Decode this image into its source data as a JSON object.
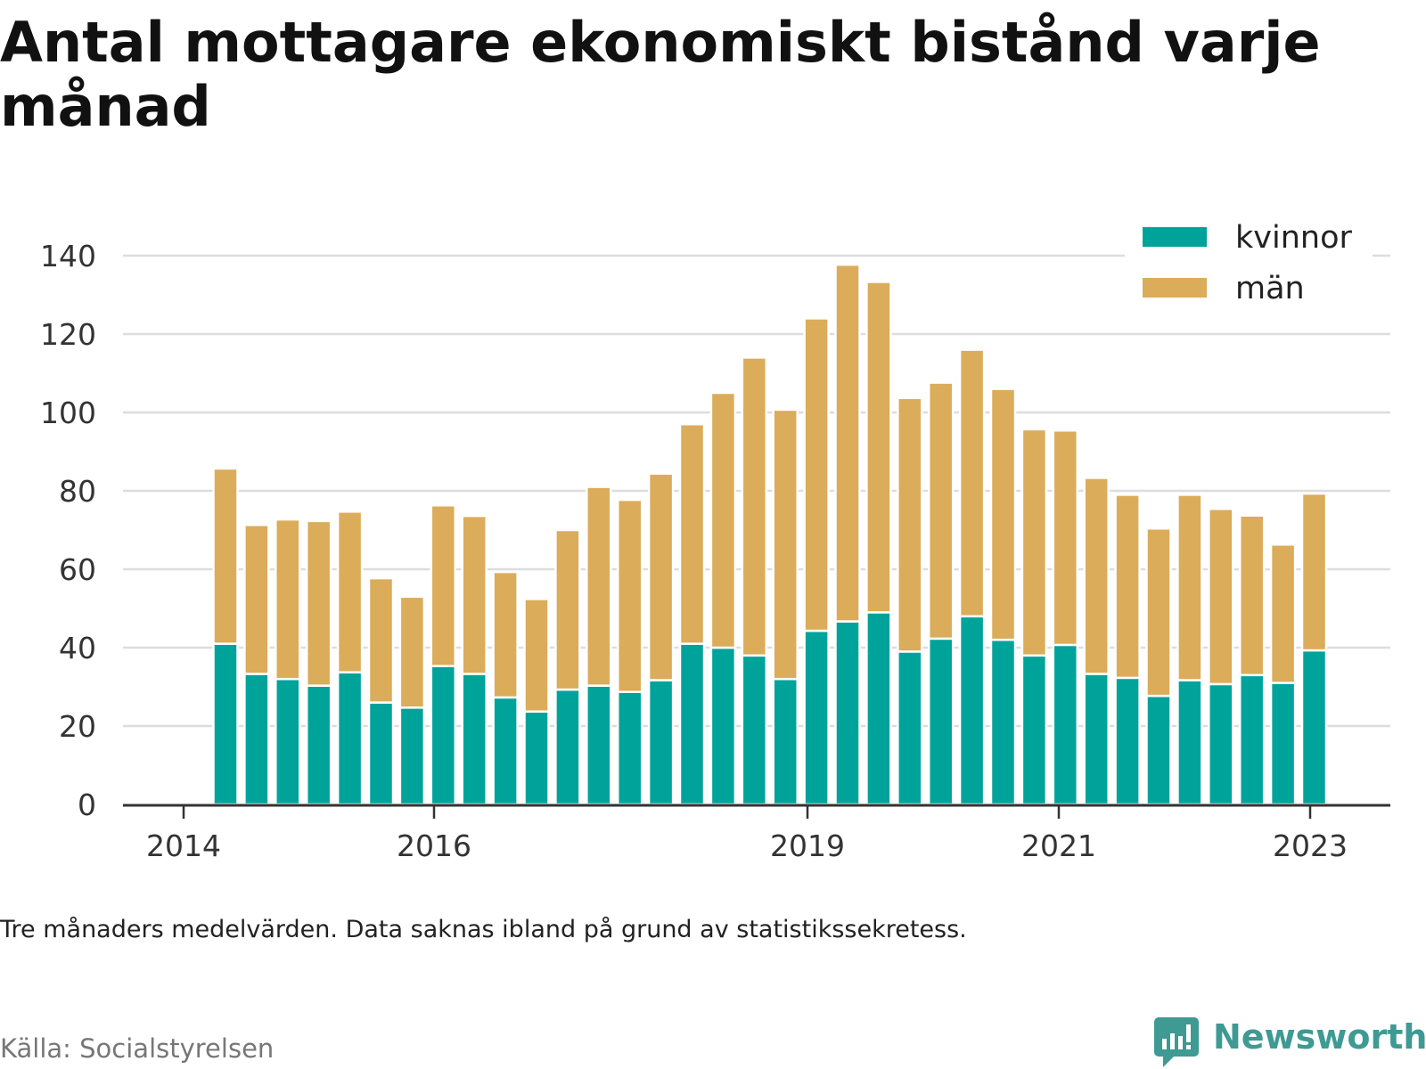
{
  "title": "Antal mottagare ekonomiskt bistånd varje månad",
  "note": "Tre månaders medelvärden. Data saknas ibland på grund av statistikssekretess.",
  "source": "Källa: Socialstyrelsen",
  "brand": "Newsworthy",
  "colors": {
    "kvinnor": "#00a39a",
    "man": "#dbac5a",
    "grid": "#dddddd",
    "axis": "#333333",
    "brand": "#3e9a93"
  },
  "chart_data": {
    "type": "bar",
    "stacked": true,
    "y_ticks": [
      0,
      20,
      40,
      60,
      80,
      100,
      120,
      140
    ],
    "ylim": [
      0,
      140
    ],
    "x_ticks": [
      "2014",
      "2016",
      "2019",
      "2021",
      "2023"
    ],
    "grid": true,
    "legend_position": "top-right",
    "categories": [
      "2014 Q2",
      "2014 Q3",
      "2014 Q4",
      "2015 Q1",
      "2015 Q2",
      "2015 Q3",
      "2015 Q4",
      "2016 Q1",
      "2016 Q2",
      "2016 Q3",
      "2016 Q4",
      "2017 Q1",
      "2017 Q2",
      "2017 Q3",
      "2017 Q4",
      "2018 Q1",
      "2018 Q2",
      "2018 Q3",
      "2018 Q4",
      "2019 Q1",
      "2019 Q2",
      "2019 Q3",
      "2019 Q4",
      "2020 Q1",
      "2020 Q2",
      "2020 Q3",
      "2020 Q4",
      "2021 Q1",
      "2021 Q2",
      "2021 Q3",
      "2021 Q4",
      "2022 Q1",
      "2022 Q2",
      "2022 Q3",
      "2022 Q4",
      "2023 Q1"
    ],
    "series": [
      {
        "name": "kvinnor",
        "color": "#00a39a",
        "values": [
          41,
          33.3,
          32,
          30.3,
          33.7,
          26,
          24.7,
          35.3,
          33.3,
          27.3,
          23.7,
          29.3,
          30.3,
          28.7,
          31.7,
          41,
          40,
          38,
          32,
          44.3,
          46.7,
          49,
          39,
          42.3,
          48,
          42,
          38,
          40.7,
          33.3,
          32.3,
          27.7,
          31.7,
          30.7,
          33,
          31,
          39.3
        ]
      },
      {
        "name": "män",
        "color": "#dbac5a",
        "values": [
          44.7,
          38,
          40.7,
          42,
          41,
          31.7,
          28.3,
          41,
          40.3,
          32,
          28.7,
          40.7,
          50.7,
          49,
          52.7,
          56,
          65,
          76,
          68.7,
          79.7,
          91,
          84.3,
          64.7,
          65.3,
          68,
          64,
          57.7,
          54.7,
          50,
          46.7,
          42.7,
          47.3,
          44.7,
          40.7,
          35.3,
          40
        ]
      }
    ]
  }
}
